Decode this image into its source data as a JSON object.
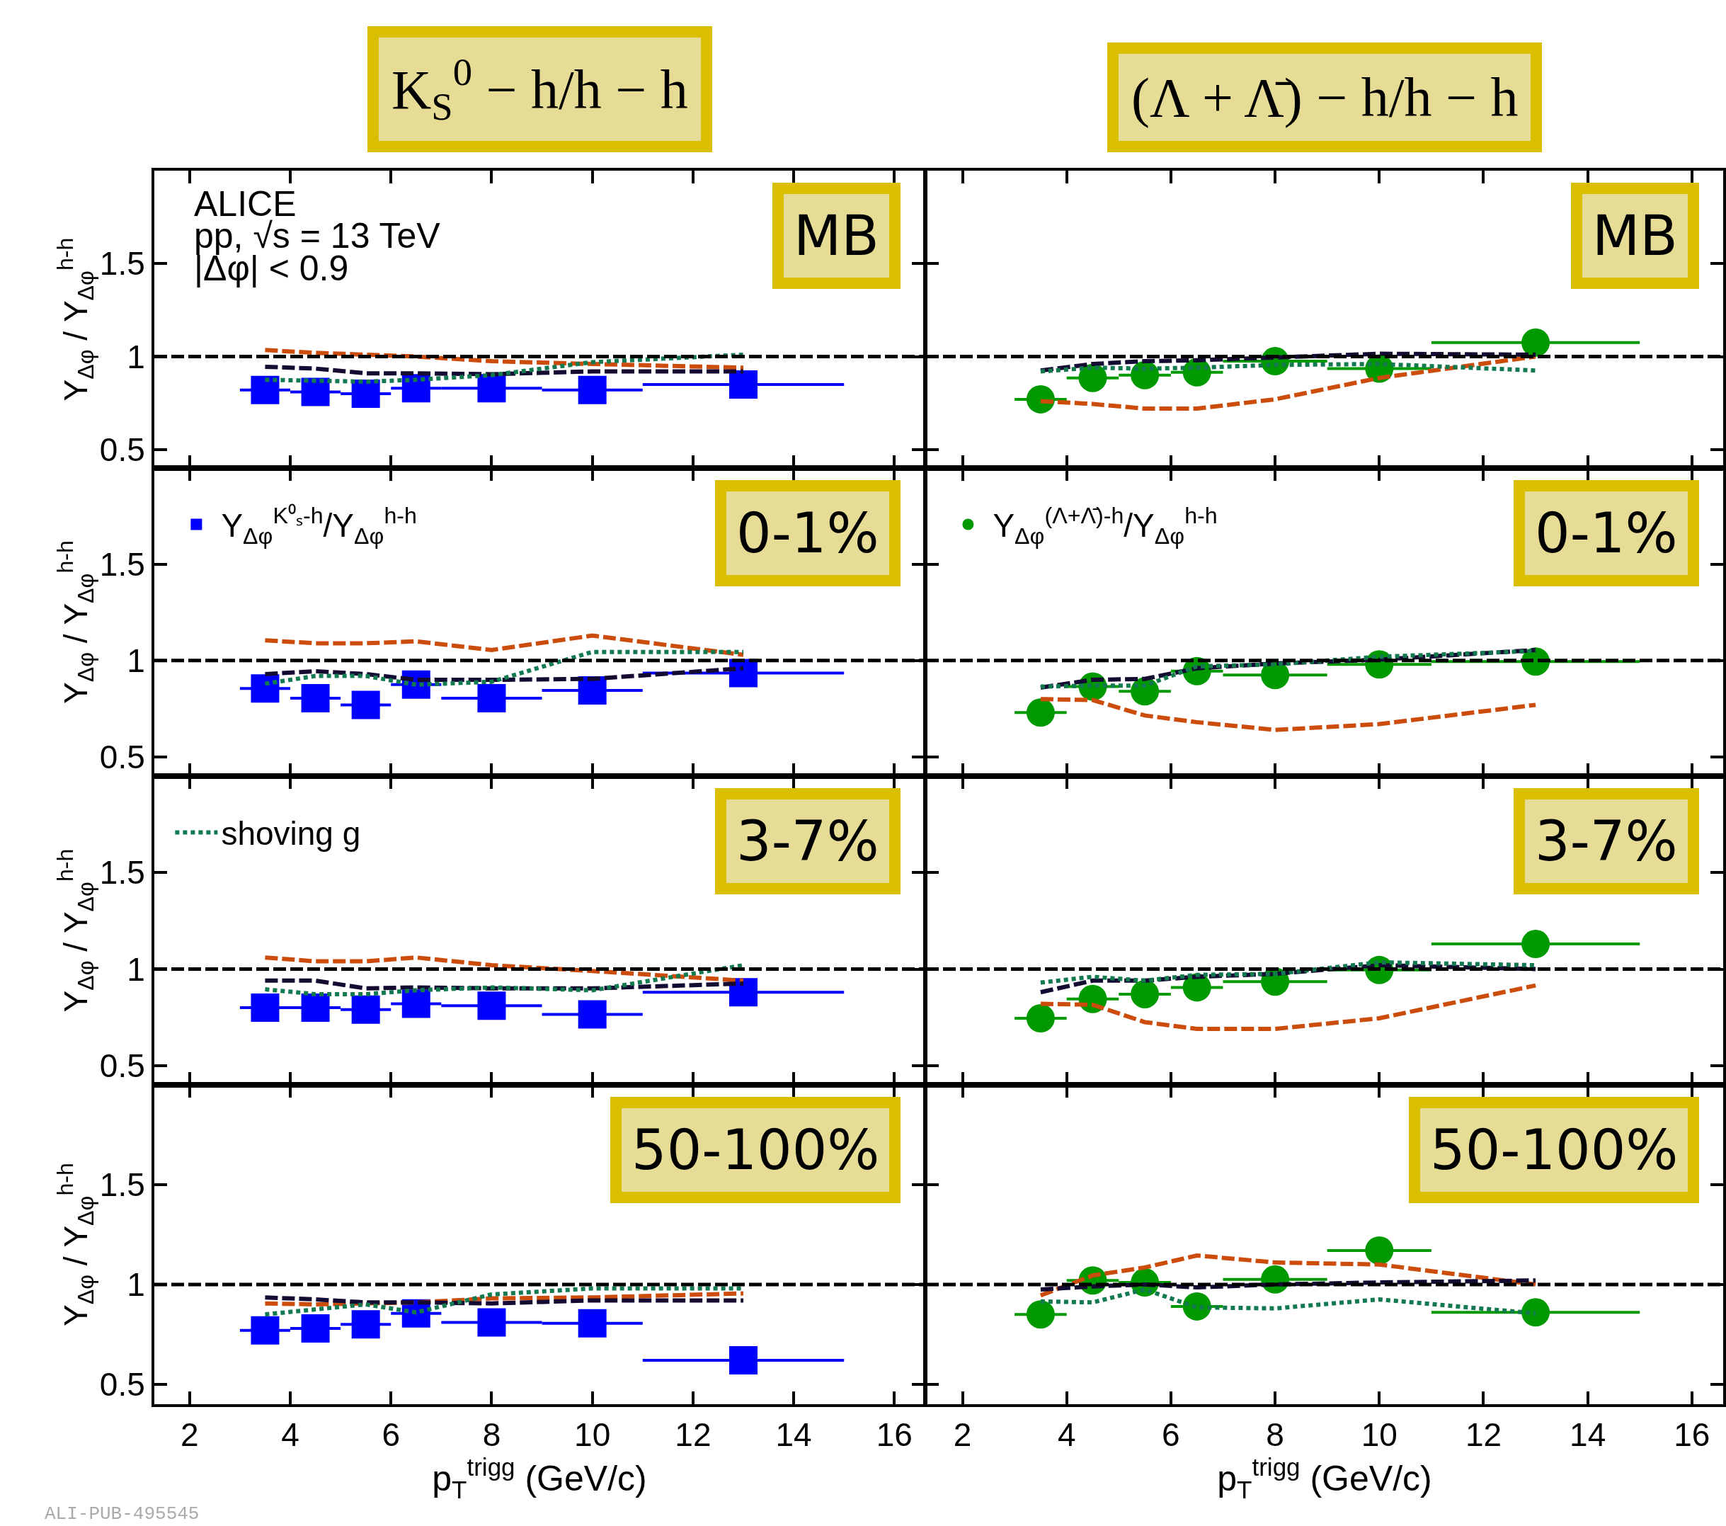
{
  "chart_data": [
    {
      "type": "scatter",
      "title": "K$_{S}$$^{0}$ − h/h − h",
      "subtitle": "MB",
      "ylabel": "Y$_{Δφ}$ / Y$_{Δφ}$$^{h-h}$",
      "annotations": [
        "ALICE",
        "pp, √s = 13 TeV",
        "|Δφ| < 0.9"
      ],
      "x": [
        3.5,
        4.5,
        5.5,
        6.5,
        8,
        10,
        13
      ],
      "xlim": [
        1.3,
        16.6
      ],
      "ylim": [
        0.4,
        2.0
      ],
      "xticks": [
        2,
        4,
        6,
        8,
        10,
        12,
        14,
        16
      ],
      "yticks": [
        0.5,
        1,
        1.5
      ],
      "tick_labels": "y",
      "ref_lines": [
        {
          "axis": "y",
          "value": 1,
          "color": "#000000",
          "line_style": "dashed"
        }
      ],
      "series": [
        {
          "type": "line",
          "color": "#cc4c0c",
          "line_style": "dashed",
          "values": [
            1.035,
            1.02,
            1.01,
            1.0,
            0.975,
            0.96,
            0.94
          ]
        },
        {
          "type": "line",
          "color": "#140a32",
          "line_style": "dashed",
          "values": [
            0.945,
            0.935,
            0.91,
            0.91,
            0.905,
            0.92,
            0.92
          ]
        },
        {
          "type": "line",
          "color": "#137a4f",
          "line_style": "dotted",
          "values": [
            0.875,
            0.87,
            0.865,
            0.875,
            0.9,
            0.97,
            1.01
          ]
        },
        {
          "color": "#0000ff",
          "marker": "square",
          "values": [
            0.82,
            0.81,
            0.8,
            0.83,
            0.83,
            0.82,
            0.85
          ],
          "xerrors": [
            0.5,
            0.5,
            0.5,
            0.5,
            1,
            1,
            2
          ]
        }
      ]
    },
    {
      "type": "scatter",
      "title": "(Λ + Λ̄) − h/h − h",
      "subtitle": "MB",
      "x": [
        3.5,
        4.5,
        5.5,
        6.5,
        8,
        10,
        13
      ],
      "xlim": [
        1.3,
        16.6
      ],
      "ylim": [
        0.4,
        2.0
      ],
      "xticks": [
        2,
        4,
        6,
        8,
        10,
        12,
        14,
        16
      ],
      "yticks": [
        0.5,
        1,
        1.5
      ],
      "tick_labels": false,
      "ref_lines": [
        {
          "axis": "y",
          "value": 1,
          "color": "#000000",
          "line_style": "dashed"
        }
      ],
      "series": [
        {
          "type": "line",
          "color": "#cc4c0c",
          "line_style": "dashed",
          "values": [
            0.76,
            0.745,
            0.72,
            0.72,
            0.77,
            0.885,
            1.0
          ]
        },
        {
          "type": "line",
          "color": "#140a32",
          "line_style": "dashed",
          "values": [
            0.925,
            0.96,
            0.975,
            0.98,
            0.995,
            1.015,
            1.01
          ]
        },
        {
          "type": "line",
          "color": "#137a4f",
          "line_style": "dotted",
          "values": [
            0.92,
            0.94,
            0.935,
            0.94,
            0.955,
            0.96,
            0.925
          ]
        },
        {
          "color": "#009900",
          "marker": "circle",
          "values": [
            0.77,
            0.885,
            0.9,
            0.915,
            0.975,
            0.935,
            1.075
          ],
          "xerrors": [
            0.5,
            0.5,
            0.5,
            0.5,
            1,
            1,
            2
          ]
        }
      ]
    },
    {
      "type": "scatter",
      "subtitle": "0-1%",
      "ylabel": "Y$_{Δφ}$ / Y$_{Δφ}$$^{h-h}$",
      "legend": "top left",
      "x": [
        3.5,
        4.5,
        5.5,
        6.5,
        8,
        10,
        13
      ],
      "xlim": [
        1.3,
        16.6
      ],
      "ylim": [
        0.4,
        2.0
      ],
      "xticks": [
        2,
        4,
        6,
        8,
        10,
        12,
        14,
        16
      ],
      "yticks": [
        0.5,
        1,
        1.5
      ],
      "tick_labels": "y",
      "ref_lines": [
        {
          "axis": "y",
          "value": 1,
          "color": "#000000",
          "line_style": "dashed"
        }
      ],
      "series": [
        {
          "type": "line",
          "color": "#cc4c0c",
          "line_style": "dashed",
          "values": [
            1.105,
            1.09,
            1.09,
            1.1,
            1.055,
            1.13,
            1.03
          ]
        },
        {
          "type": "line",
          "color": "#140a32",
          "line_style": "dashed",
          "values": [
            0.93,
            0.945,
            0.93,
            0.9,
            0.9,
            0.905,
            0.96
          ]
        },
        {
          "type": "line",
          "color": "#137a4f",
          "line_style": "dotted",
          "values": [
            0.88,
            0.92,
            0.92,
            0.875,
            0.89,
            1.045,
            1.045
          ]
        },
        {
          "name": "Y$_{Δφ}$$^{K⁰ₛ-h}$/Y$_{Δφ}$$^{h-h}$",
          "color": "#0000ff",
          "marker": "square",
          "values": [
            0.855,
            0.805,
            0.77,
            0.875,
            0.805,
            0.845,
            0.935
          ],
          "xerrors": [
            0.5,
            0.5,
            0.5,
            0.5,
            1,
            1,
            2
          ]
        }
      ]
    },
    {
      "type": "scatter",
      "subtitle": "0-1%",
      "legend": "top left",
      "x": [
        3.5,
        4.5,
        5.5,
        6.5,
        8,
        10,
        13
      ],
      "xlim": [
        1.3,
        16.6
      ],
      "ylim": [
        0.4,
        2.0
      ],
      "xticks": [
        2,
        4,
        6,
        8,
        10,
        12,
        14,
        16
      ],
      "yticks": [
        0.5,
        1,
        1.5
      ],
      "tick_labels": false,
      "ref_lines": [
        {
          "axis": "y",
          "value": 1,
          "color": "#000000",
          "line_style": "dashed"
        }
      ],
      "series": [
        {
          "type": "line",
          "color": "#cc4c0c",
          "line_style": "dashed",
          "values": [
            0.8,
            0.795,
            0.715,
            0.68,
            0.64,
            0.67,
            0.77
          ]
        },
        {
          "type": "line",
          "color": "#140a32",
          "line_style": "dashed",
          "values": [
            0.86,
            0.9,
            0.905,
            0.96,
            0.985,
            1.005,
            1.055
          ]
        },
        {
          "type": "line",
          "color": "#137a4f",
          "line_style": "dotted",
          "values": [
            0.865,
            0.87,
            0.87,
            0.97,
            0.98,
            1.02,
            1.05
          ]
        },
        {
          "name": "Y$_{Δφ}$$^{(Λ+Λ̄)-h}$/Y$_{Δφ}$$^{h-h}$",
          "color": "#009900",
          "marker": "circle",
          "values": [
            0.73,
            0.865,
            0.84,
            0.945,
            0.925,
            0.98,
            0.995
          ],
          "xerrors": [
            0.5,
            0.5,
            0.5,
            0.5,
            1,
            1,
            2
          ]
        }
      ]
    },
    {
      "type": "scatter",
      "subtitle": "3-7%",
      "ylabel": "Y$_{Δφ}$ / Y$_{Δφ}$$^{h-h}$",
      "legend": "top left",
      "x": [
        3.5,
        4.5,
        5.5,
        6.5,
        8,
        10,
        13
      ],
      "xlim": [
        1.3,
        16.6
      ],
      "ylim": [
        0.4,
        2.0
      ],
      "xticks": [
        2,
        4,
        6,
        8,
        10,
        12,
        14,
        16
      ],
      "yticks": [
        0.5,
        1,
        1.5
      ],
      "tick_labels": "y",
      "ref_lines": [
        {
          "axis": "y",
          "value": 1,
          "color": "#000000",
          "line_style": "dashed"
        }
      ],
      "series": [
        {
          "type": "line",
          "color": "#cc4c0c",
          "line_style": "dashed",
          "values": [
            1.06,
            1.04,
            1.04,
            1.06,
            1.02,
            0.99,
            0.94
          ]
        },
        {
          "type": "line",
          "color": "#140a32",
          "line_style": "dashed",
          "values": [
            0.94,
            0.94,
            0.9,
            0.905,
            0.9,
            0.9,
            0.925
          ]
        },
        {
          "type": "line",
          "name": "shoving g",
          "color": "#137a4f",
          "line_style": "dotted",
          "values": [
            0.895,
            0.87,
            0.87,
            0.89,
            0.905,
            0.89,
            1.02
          ]
        },
        {
          "color": "#0000ff",
          "marker": "square",
          "values": [
            0.8,
            0.8,
            0.79,
            0.82,
            0.81,
            0.765,
            0.88
          ],
          "xerrors": [
            0.5,
            0.5,
            0.5,
            0.5,
            1,
            1,
            2
          ]
        }
      ]
    },
    {
      "type": "scatter",
      "subtitle": "3-7%",
      "x": [
        3.5,
        4.5,
        5.5,
        6.5,
        8,
        10,
        13
      ],
      "xlim": [
        1.3,
        16.6
      ],
      "ylim": [
        0.4,
        2.0
      ],
      "xticks": [
        2,
        4,
        6,
        8,
        10,
        12,
        14,
        16
      ],
      "yticks": [
        0.5,
        1,
        1.5
      ],
      "tick_labels": false,
      "ref_lines": [
        {
          "axis": "y",
          "value": 1,
          "color": "#000000",
          "line_style": "dashed"
        }
      ],
      "series": [
        {
          "type": "line",
          "color": "#cc4c0c",
          "line_style": "dashed",
          "values": [
            0.82,
            0.815,
            0.725,
            0.69,
            0.69,
            0.745,
            0.915
          ]
        },
        {
          "type": "line",
          "color": "#140a32",
          "line_style": "dashed",
          "values": [
            0.88,
            0.94,
            0.94,
            0.96,
            0.975,
            1.02,
            1.0
          ]
        },
        {
          "type": "line",
          "color": "#137a4f",
          "line_style": "dotted",
          "values": [
            0.93,
            0.96,
            0.94,
            0.97,
            0.975,
            1.035,
            1.02
          ]
        },
        {
          "color": "#009900",
          "marker": "circle",
          "values": [
            0.745,
            0.845,
            0.87,
            0.905,
            0.935,
            0.995,
            1.13
          ],
          "xerrors": [
            0.5,
            0.5,
            0.5,
            0.5,
            1,
            1,
            2
          ]
        }
      ]
    },
    {
      "type": "scatter",
      "subtitle": "50-100%",
      "ylabel": "Y$_{Δφ}$ / Y$_{Δφ}$$^{h-h}$",
      "xlabel": "p$_{T}$$^{trigg}$ (GeV/c)",
      "annotations": [
        "ALI-PUB-495545"
      ],
      "x": [
        3.5,
        4.5,
        5.5,
        6.5,
        8,
        10,
        13
      ],
      "xlim": [
        1.3,
        16.6
      ],
      "ylim": [
        0.4,
        2.0
      ],
      "xticks": [
        2,
        4,
        6,
        8,
        10,
        12,
        14,
        16
      ],
      "yticks": [
        0.5,
        1,
        1.5
      ],
      "ref_lines": [
        {
          "axis": "y",
          "value": 1,
          "color": "#000000",
          "line_style": "dashed"
        }
      ],
      "series": [
        {
          "type": "line",
          "color": "#cc4c0c",
          "line_style": "dashed",
          "values": [
            0.905,
            0.9,
            0.905,
            0.91,
            0.93,
            0.935,
            0.955
          ]
        },
        {
          "type": "line",
          "color": "#140a32",
          "line_style": "dashed",
          "values": [
            0.935,
            0.925,
            0.91,
            0.91,
            0.905,
            0.92,
            0.92
          ]
        },
        {
          "type": "line",
          "color": "#137a4f",
          "line_style": "dotted",
          "values": [
            0.85,
            0.875,
            0.9,
            0.86,
            0.95,
            0.98,
            0.98
          ]
        },
        {
          "color": "#0000ff",
          "marker": "square",
          "values": [
            0.77,
            0.78,
            0.8,
            0.855,
            0.81,
            0.805,
            0.62
          ],
          "xerrors": [
            0.5,
            0.5,
            0.5,
            0.5,
            1,
            1,
            2
          ]
        }
      ]
    },
    {
      "type": "scatter",
      "subtitle": "50-100%",
      "xlabel": "p$_{T}$$^{trigg}$ (GeV/c)",
      "x": [
        3.5,
        4.5,
        5.5,
        6.5,
        8,
        10,
        13
      ],
      "xlim": [
        1.3,
        16.6
      ],
      "ylim": [
        0.4,
        2.0
      ],
      "xticks": [
        2,
        4,
        6,
        8,
        10,
        12,
        14,
        16
      ],
      "yticks": [
        0.5,
        1,
        1.5
      ],
      "tick_labels": "x",
      "ref_lines": [
        {
          "axis": "y",
          "value": 1,
          "color": "#000000",
          "line_style": "dashed"
        }
      ],
      "series": [
        {
          "type": "line",
          "color": "#cc4c0c",
          "line_style": "dashed",
          "values": [
            0.945,
            1.045,
            1.085,
            1.145,
            1.11,
            1.1,
            1.0
          ]
        },
        {
          "type": "line",
          "color": "#140a32",
          "line_style": "dashed",
          "values": [
            0.975,
            0.99,
            1.0,
            0.985,
            1.0,
            1.01,
            1.02
          ]
        },
        {
          "type": "line",
          "color": "#137a4f",
          "line_style": "dotted",
          "values": [
            0.915,
            0.91,
            0.975,
            0.885,
            0.88,
            0.925,
            0.855
          ]
        },
        {
          "color": "#009900",
          "marker": "circle",
          "values": [
            0.85,
            1.02,
            1.01,
            0.89,
            1.025,
            1.17,
            0.86
          ],
          "xerrors": [
            0.5,
            0.5,
            0.5,
            0.5,
            1,
            1,
            2
          ]
        }
      ]
    }
  ]
}
